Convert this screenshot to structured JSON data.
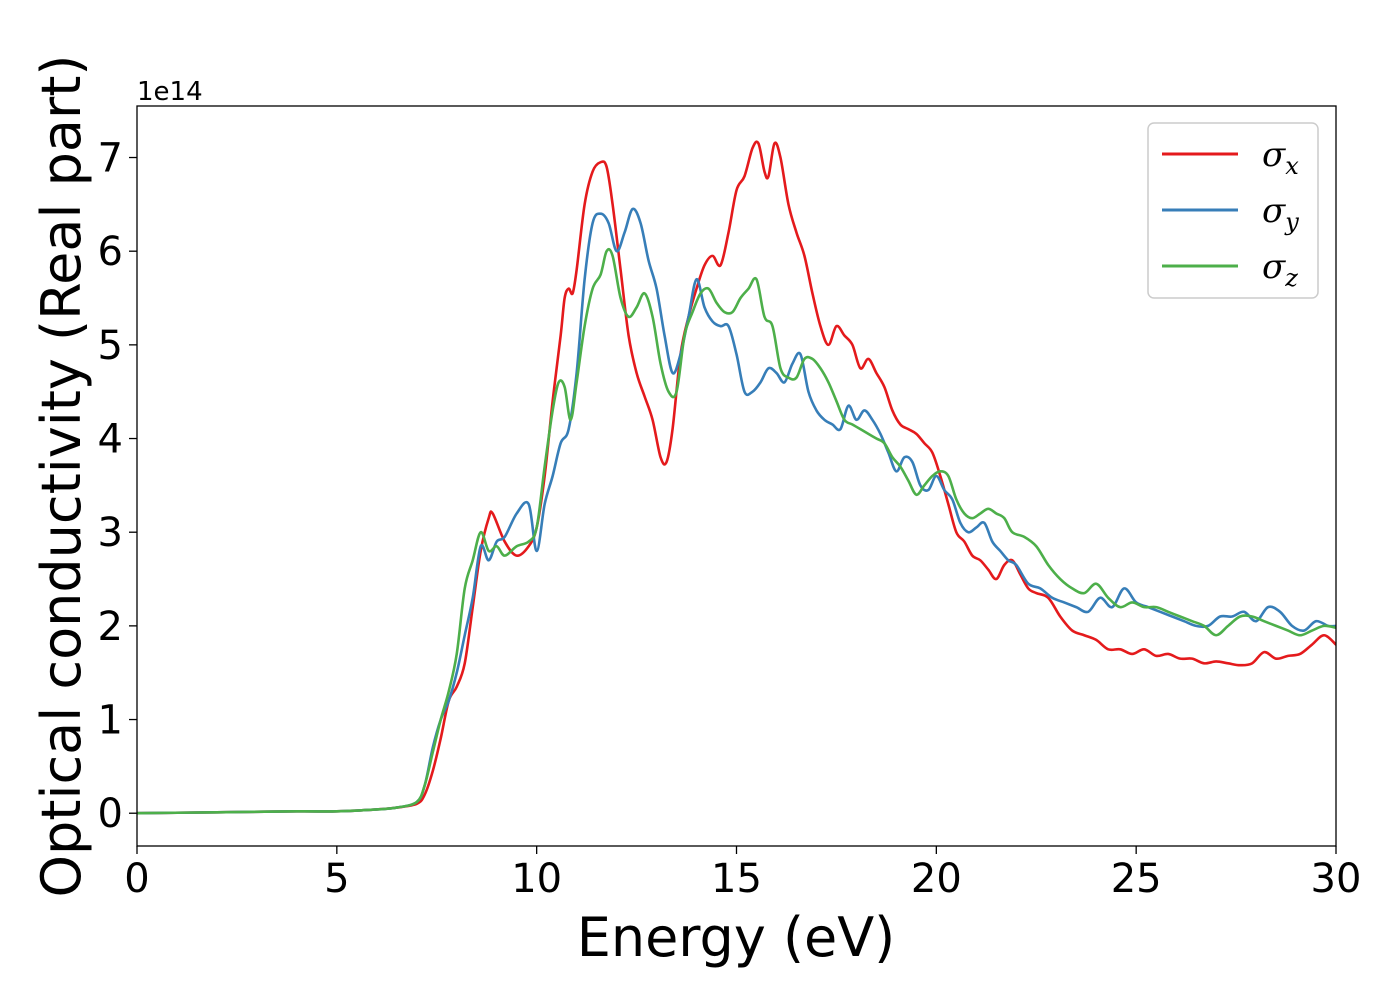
{
  "chart_data": {
    "type": "line",
    "xlabel": "Energy (eV)",
    "ylabel": "Optical conductivity (Real part)",
    "y_offset_label": "1e14",
    "y_scale_factor": 100000000000000.0,
    "xlim": [
      0,
      30
    ],
    "ylim": [
      -0.35,
      7.55
    ],
    "xticks": [
      0,
      5,
      10,
      15,
      20,
      25,
      30
    ],
    "yticks": [
      0,
      1,
      2,
      3,
      4,
      5,
      6,
      7
    ],
    "grid": false,
    "legend_placement": "top-right",
    "series": [
      {
        "name": "σx",
        "symbol": "σ",
        "subscript": "x",
        "color": "#e41a1c",
        "x": [
          0,
          2,
          4,
          5,
          6,
          6.5,
          7,
          7.2,
          7.4,
          7.6,
          7.8,
          8,
          8.2,
          8.4,
          8.6,
          8.8,
          8.9,
          9.2,
          9.5,
          9.8,
          10,
          10.2,
          10.4,
          10.6,
          10.7,
          10.8,
          10.9,
          11,
          11.2,
          11.4,
          11.6,
          11.75,
          11.9,
          12.1,
          12.3,
          12.5,
          12.7,
          12.9,
          13.1,
          13.25,
          13.4,
          13.6,
          13.8,
          14,
          14.2,
          14.4,
          14.6,
          14.8,
          15,
          15.2,
          15.4,
          15.55,
          15.7,
          15.8,
          15.95,
          16.1,
          16.3,
          16.5,
          16.7,
          16.9,
          17.1,
          17.3,
          17.5,
          17.7,
          17.9,
          18.1,
          18.3,
          18.5,
          18.7,
          18.9,
          19.1,
          19.3,
          19.5,
          19.7,
          19.9,
          20.1,
          20.3,
          20.5,
          20.7,
          20.9,
          21.1,
          21.3,
          21.5,
          21.7,
          21.9,
          22.1,
          22.3,
          22.5,
          22.8,
          23.1,
          23.4,
          23.7,
          24,
          24.3,
          24.6,
          24.9,
          25.2,
          25.5,
          25.8,
          26.1,
          26.4,
          26.7,
          27,
          27.3,
          27.6,
          27.9,
          28.2,
          28.5,
          28.8,
          29.1,
          29.4,
          29.7,
          30
        ],
        "y": [
          0,
          0.01,
          0.02,
          0.02,
          0.04,
          0.06,
          0.1,
          0.2,
          0.45,
          0.8,
          1.2,
          1.35,
          1.6,
          2.2,
          2.8,
          3.15,
          3.2,
          2.9,
          2.75,
          2.85,
          3.05,
          3.6,
          4.4,
          5.1,
          5.5,
          5.6,
          5.55,
          5.8,
          6.5,
          6.85,
          6.95,
          6.9,
          6.5,
          5.8,
          5.1,
          4.7,
          4.45,
          4.2,
          3.8,
          3.75,
          4.1,
          4.9,
          5.3,
          5.6,
          5.85,
          5.95,
          5.85,
          6.2,
          6.65,
          6.8,
          7.1,
          7.15,
          6.85,
          6.8,
          7.15,
          7.0,
          6.5,
          6.2,
          5.95,
          5.55,
          5.2,
          5.0,
          5.2,
          5.1,
          5.0,
          4.75,
          4.85,
          4.7,
          4.55,
          4.3,
          4.15,
          4.1,
          4.05,
          3.95,
          3.85,
          3.6,
          3.3,
          3.0,
          2.9,
          2.75,
          2.7,
          2.6,
          2.5,
          2.65,
          2.7,
          2.55,
          2.4,
          2.35,
          2.3,
          2.1,
          1.95,
          1.9,
          1.85,
          1.75,
          1.75,
          1.7,
          1.75,
          1.68,
          1.7,
          1.65,
          1.65,
          1.6,
          1.62,
          1.6,
          1.58,
          1.6,
          1.72,
          1.65,
          1.68,
          1.7,
          1.8,
          1.9,
          1.8
        ]
      },
      {
        "name": "σy",
        "symbol": "σ",
        "subscript": "y",
        "color": "#377eb8",
        "x": [
          0,
          2,
          4,
          5,
          6,
          6.5,
          7,
          7.2,
          7.4,
          7.6,
          7.8,
          8,
          8.2,
          8.4,
          8.6,
          8.8,
          9,
          9.2,
          9.5,
          9.8,
          10,
          10.2,
          10.4,
          10.6,
          10.8,
          11,
          11.2,
          11.4,
          11.6,
          11.8,
          12,
          12.2,
          12.4,
          12.6,
          12.8,
          13,
          13.2,
          13.4,
          13.6,
          13.8,
          14,
          14.2,
          14.4,
          14.6,
          14.8,
          15,
          15.2,
          15.4,
          15.6,
          15.8,
          16,
          16.2,
          16.4,
          16.6,
          16.8,
          17,
          17.2,
          17.4,
          17.6,
          17.8,
          18,
          18.2,
          18.4,
          18.6,
          18.8,
          19,
          19.2,
          19.4,
          19.6,
          19.8,
          20,
          20.2,
          20.4,
          20.6,
          20.8,
          21,
          21.2,
          21.4,
          21.6,
          21.8,
          22,
          22.3,
          22.6,
          22.9,
          23.2,
          23.5,
          23.8,
          24.1,
          24.4,
          24.7,
          25,
          25.3,
          25.6,
          25.9,
          26.2,
          26.5,
          26.8,
          27.1,
          27.4,
          27.7,
          28,
          28.3,
          28.6,
          28.9,
          29.2,
          29.5,
          29.8,
          30
        ],
        "y": [
          0,
          0.01,
          0.02,
          0.02,
          0.04,
          0.06,
          0.12,
          0.3,
          0.7,
          1.0,
          1.2,
          1.5,
          1.9,
          2.3,
          2.85,
          2.7,
          2.9,
          2.95,
          3.2,
          3.3,
          2.8,
          3.3,
          3.6,
          3.95,
          4.1,
          4.7,
          5.7,
          6.3,
          6.4,
          6.3,
          6.0,
          6.2,
          6.45,
          6.3,
          5.9,
          5.6,
          5.1,
          4.7,
          4.9,
          5.3,
          5.7,
          5.4,
          5.25,
          5.2,
          5.2,
          4.9,
          4.5,
          4.5,
          4.6,
          4.75,
          4.7,
          4.6,
          4.8,
          4.9,
          4.5,
          4.3,
          4.2,
          4.15,
          4.1,
          4.35,
          4.2,
          4.3,
          4.2,
          4.05,
          3.85,
          3.65,
          3.8,
          3.75,
          3.5,
          3.45,
          3.6,
          3.45,
          3.35,
          3.1,
          3.0,
          3.05,
          3.1,
          2.9,
          2.8,
          2.7,
          2.65,
          2.45,
          2.4,
          2.3,
          2.25,
          2.2,
          2.15,
          2.3,
          2.2,
          2.4,
          2.25,
          2.2,
          2.15,
          2.1,
          2.05,
          2.0,
          2.0,
          2.1,
          2.1,
          2.15,
          2.05,
          2.2,
          2.15,
          2.0,
          1.95,
          2.05,
          2.0,
          2.0
        ]
      },
      {
        "name": "σz",
        "symbol": "σ",
        "subscript": "z",
        "color": "#4daf4a",
        "x": [
          0,
          2,
          4,
          5,
          6,
          6.5,
          7,
          7.2,
          7.4,
          7.6,
          7.8,
          8,
          8.2,
          8.4,
          8.6,
          8.8,
          9,
          9.2,
          9.5,
          9.8,
          10,
          10.2,
          10.4,
          10.55,
          10.7,
          10.85,
          11,
          11.2,
          11.4,
          11.6,
          11.75,
          11.9,
          12.1,
          12.3,
          12.5,
          12.7,
          12.9,
          13.1,
          13.3,
          13.5,
          13.7,
          13.9,
          14.1,
          14.3,
          14.5,
          14.7,
          14.9,
          15.1,
          15.3,
          15.5,
          15.7,
          15.9,
          16.1,
          16.3,
          16.5,
          16.7,
          16.9,
          17.1,
          17.3,
          17.5,
          17.7,
          17.9,
          18.1,
          18.3,
          18.5,
          18.7,
          18.9,
          19.1,
          19.3,
          19.5,
          19.7,
          19.9,
          20.1,
          20.3,
          20.5,
          20.7,
          20.9,
          21.1,
          21.3,
          21.5,
          21.7,
          21.9,
          22.2,
          22.5,
          22.8,
          23.1,
          23.4,
          23.7,
          24,
          24.3,
          24.6,
          24.9,
          25.2,
          25.5,
          25.8,
          26.1,
          26.4,
          26.7,
          27,
          27.3,
          27.6,
          27.9,
          28.2,
          28.5,
          28.8,
          29.1,
          29.4,
          29.7,
          30
        ],
        "y": [
          0,
          0.01,
          0.02,
          0.02,
          0.04,
          0.06,
          0.12,
          0.3,
          0.65,
          1.0,
          1.3,
          1.7,
          2.4,
          2.7,
          3.0,
          2.8,
          2.85,
          2.75,
          2.85,
          2.9,
          3.05,
          3.7,
          4.3,
          4.6,
          4.55,
          4.2,
          4.6,
          5.2,
          5.6,
          5.75,
          6.0,
          5.95,
          5.5,
          5.3,
          5.4,
          5.55,
          5.3,
          4.8,
          4.5,
          4.5,
          5.1,
          5.35,
          5.55,
          5.6,
          5.45,
          5.35,
          5.35,
          5.5,
          5.6,
          5.7,
          5.3,
          5.2,
          4.75,
          4.65,
          4.65,
          4.85,
          4.85,
          4.75,
          4.6,
          4.4,
          4.2,
          4.15,
          4.1,
          4.05,
          4.0,
          3.95,
          3.8,
          3.7,
          3.55,
          3.4,
          3.5,
          3.6,
          3.65,
          3.6,
          3.35,
          3.2,
          3.15,
          3.2,
          3.25,
          3.2,
          3.15,
          3.0,
          2.95,
          2.85,
          2.65,
          2.5,
          2.4,
          2.35,
          2.45,
          2.3,
          2.2,
          2.25,
          2.2,
          2.2,
          2.15,
          2.1,
          2.05,
          2.0,
          1.9,
          2.0,
          2.1,
          2.1,
          2.05,
          2.0,
          1.95,
          1.9,
          1.95,
          2.0,
          1.98
        ]
      }
    ]
  }
}
